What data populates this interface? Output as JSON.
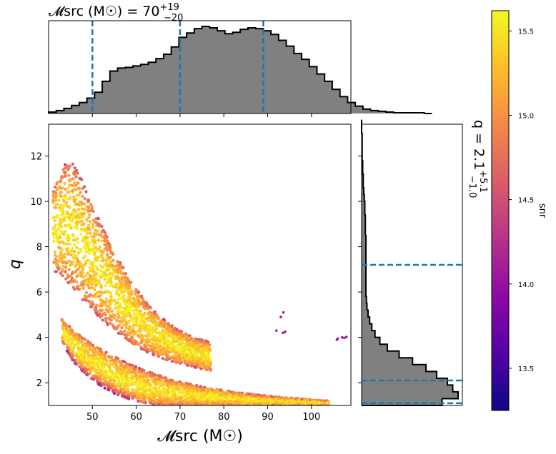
{
  "chart_data": {
    "type": "scatter",
    "title_top": "𝓜src (M☉) = 70",
    "title_top_sup": "+19",
    "title_top_sub": "−20",
    "title_right": "q = 2.1",
    "title_right_sup": "+5.1",
    "title_right_sub": "−1.0",
    "xlabel": "𝓜src (M☉)",
    "ylabel": "q",
    "colorbar_label": "snr",
    "xlim": [
      40,
      109
    ],
    "ylim": [
      1,
      13.4
    ],
    "clim": [
      13.25,
      15.62
    ],
    "x_ticks": [
      50,
      60,
      70,
      80,
      90,
      100
    ],
    "y_ticks": [
      2,
      4,
      6,
      8,
      10,
      12
    ],
    "cbar_ticks": [
      13.5,
      14.0,
      14.5,
      15.0,
      15.5
    ],
    "x_quantiles": [
      50,
      70,
      89
    ],
    "y_quantiles": [
      1.1,
      2.1,
      7.2
    ],
    "hist_x": {
      "edges_start": 40,
      "bin_width": 1.75,
      "counts": [
        2,
        4,
        7,
        11,
        15,
        21,
        29,
        44,
        58,
        62,
        63,
        65,
        67,
        70,
        75,
        81,
        91,
        104,
        110,
        116,
        119,
        117,
        113,
        109,
        111,
        115,
        117,
        116,
        113,
        108,
        100,
        92,
        82,
        74,
        64,
        54,
        44,
        33,
        23,
        15,
        10,
        6,
        4,
        3,
        2,
        1,
        1,
        1,
        1,
        0
      ]
    },
    "hist_y": {
      "edges_start": 1,
      "bin_width": 0.3,
      "counts": [
        150,
        180,
        170,
        160,
        140,
        120,
        95,
        70,
        48,
        34,
        25,
        19,
        15,
        12,
        10,
        9,
        8,
        8,
        8,
        8,
        8,
        8,
        8,
        8,
        8,
        7,
        7,
        7,
        6,
        6,
        5,
        4,
        3,
        3,
        2,
        2,
        1,
        1,
        1,
        1,
        0,
        0
      ]
    },
    "bands": [
      {
        "name": "lower",
        "xmin": 43,
        "xmax": 104,
        "q_top": [
          4.8,
          4.4,
          4.05,
          3.75,
          3.45,
          3.2,
          2.95,
          2.75,
          2.55,
          2.4,
          2.25,
          2.1,
          2.0,
          1.9,
          1.8,
          1.72,
          1.65,
          1.58,
          1.52,
          1.47,
          1.42,
          1.38,
          1.34,
          1.3,
          1.26,
          1.23,
          1.2
        ],
        "q_bottom": [
          3.8,
          3.0,
          2.5,
          2.1,
          1.8,
          1.55,
          1.35,
          1.22,
          1.12,
          1.05,
          1.02,
          1.0,
          1.0,
          1.0,
          1.0,
          1.0,
          1.0,
          1.0,
          1.0,
          1.0,
          1.0,
          1.0,
          1.0,
          1.0,
          1.0,
          1.0,
          1.0
        ]
      },
      {
        "name": "upper",
        "xmin": 41,
        "xmax": 77,
        "q_top": [
          10.5,
          11.5,
          11.8,
          11.2,
          10.3,
          9.4,
          8.6,
          7.8,
          7.1,
          6.5,
          5.9,
          5.4,
          5.0,
          4.7,
          4.4,
          4.2,
          4.0,
          3.9,
          3.8
        ],
        "q_bottom": [
          7.0,
          6.6,
          6.2,
          5.8,
          5.4,
          5.0,
          4.6,
          4.3,
          4.0,
          3.7,
          3.5,
          3.3,
          3.15,
          3.0,
          2.9,
          2.8,
          2.7,
          2.6,
          2.5
        ]
      }
    ],
    "outliers": [
      [
        93.6,
        5.1
      ],
      [
        93,
        4.9
      ],
      [
        94,
        4.25
      ],
      [
        92,
        4.3
      ],
      [
        93.5,
        4.2
      ],
      [
        106,
        3.95
      ],
      [
        107,
        4.0
      ],
      [
        108,
        4.02
      ],
      [
        107.5,
        3.98
      ],
      [
        105.8,
        3.9
      ]
    ],
    "colormap": [
      "#0d0887",
      "#5302a3",
      "#8b0aa5",
      "#b83289",
      "#db5c68",
      "#f48849",
      "#febd2a",
      "#f0f921"
    ]
  }
}
